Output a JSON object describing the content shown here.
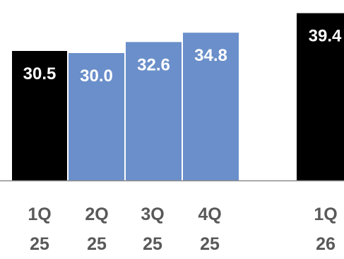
{
  "chart_data": {
    "type": "bar",
    "categories": [
      {
        "line1": "1Q",
        "line2": "25"
      },
      {
        "line1": "2Q",
        "line2": "25"
      },
      {
        "line1": "3Q",
        "line2": "25"
      },
      {
        "line1": "4Q",
        "line2": "25"
      },
      {
        "line1": "1Q",
        "line2": "26"
      }
    ],
    "values": [
      30.5,
      30.0,
      32.6,
      34.8,
      39.4
    ],
    "value_labels": [
      "30.5",
      "30.0",
      "32.6",
      "34.8",
      "39.4"
    ],
    "bar_colors": [
      "#000000",
      "#6a8fca",
      "#6a8fca",
      "#6a8fca",
      "#000000"
    ],
    "label_color": "#ffffff",
    "axis_color": "#8c8c8c",
    "tick_label_color": "#595959",
    "grid": false,
    "legend": "none",
    "ylim": [
      0,
      40.5
    ]
  }
}
